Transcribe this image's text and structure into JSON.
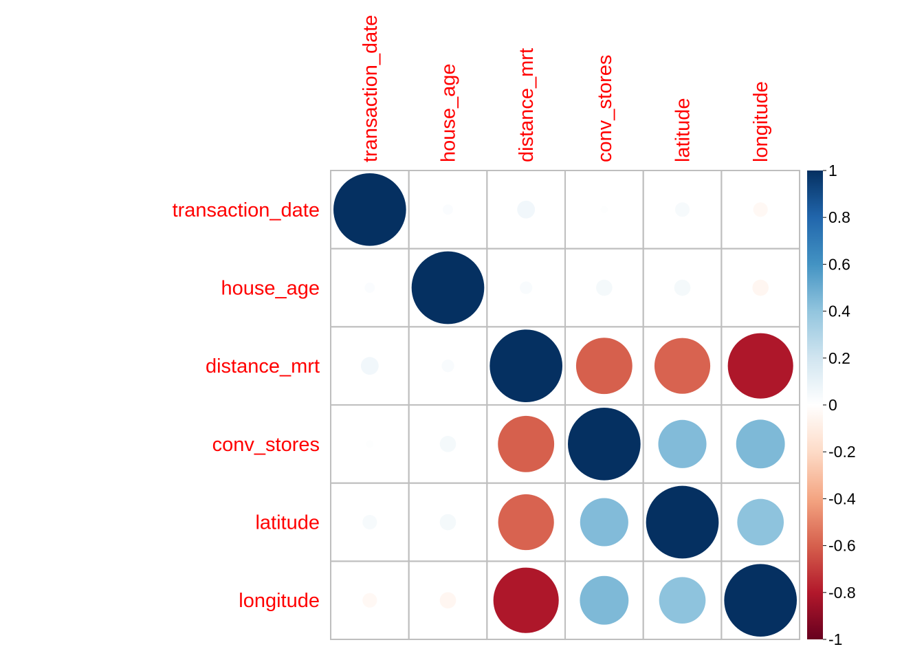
{
  "chart_data": {
    "type": "heatmap",
    "variables": [
      "transaction_date",
      "house_age",
      "distance_mrt",
      "conv_stores",
      "latitude",
      "longitude"
    ],
    "matrix": [
      [
        1.0,
        0.02,
        0.06,
        0.01,
        0.04,
        -0.04
      ],
      [
        0.02,
        1.0,
        0.03,
        0.05,
        0.05,
        -0.05
      ],
      [
        0.06,
        0.03,
        1.0,
        -0.6,
        -0.59,
        -0.81
      ],
      [
        0.01,
        0.05,
        -0.6,
        1.0,
        0.44,
        0.45
      ],
      [
        0.04,
        0.05,
        -0.59,
        0.44,
        1.0,
        0.41
      ],
      [
        -0.04,
        -0.05,
        -0.81,
        0.45,
        0.41,
        1.0
      ]
    ],
    "colorbar": {
      "range": [
        -1,
        1
      ],
      "ticks": [
        1,
        0.8,
        0.6,
        0.4,
        0.2,
        0,
        -0.2,
        -0.4,
        -0.6,
        -0.8,
        -1
      ],
      "tick_labels": [
        "1",
        "0.8",
        "0.6",
        "0.4",
        "0.2",
        "0",
        "-0.2",
        "-0.4",
        "-0.6",
        "-0.8",
        "-1"
      ],
      "palette": [
        "#67001F",
        "#B2182B",
        "#D6604D",
        "#F4A582",
        "#FDDBC7",
        "#FFFFFF",
        "#D1E5F0",
        "#92C5DE",
        "#4393C3",
        "#2166AC",
        "#053061"
      ]
    },
    "label_color": "#FF0000",
    "grid_color": "#BEBEBE",
    "glyph": "circle"
  }
}
